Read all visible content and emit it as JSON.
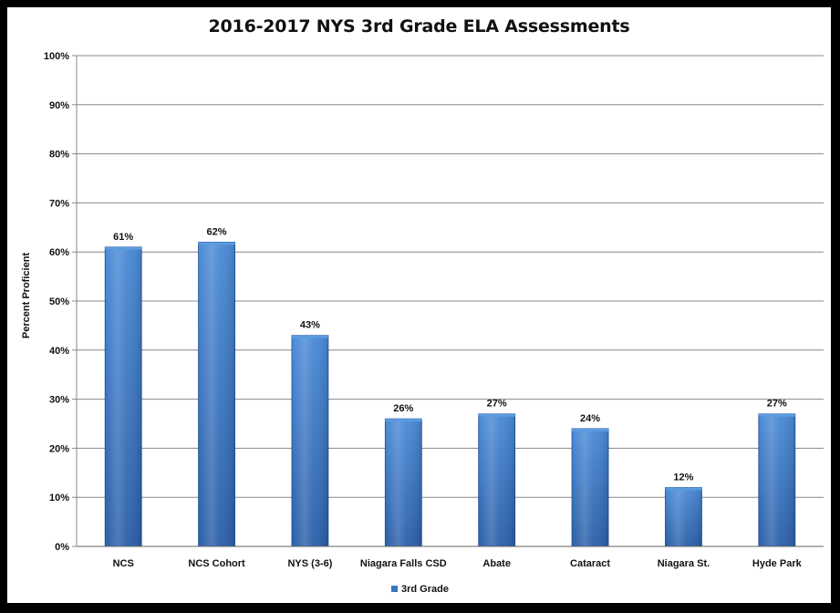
{
  "chart_data": {
    "type": "bar",
    "title": "2016-2017 NYS 3rd Grade ELA Assessments",
    "xlabel": "",
    "ylabel": "Percent Proficient",
    "ylim": [
      0,
      100
    ],
    "yticks": [
      "0%",
      "10%",
      "20%",
      "30%",
      "40%",
      "50%",
      "60%",
      "70%",
      "80%",
      "90%",
      "100%"
    ],
    "categories": [
      "NCS",
      "NCS Cohort",
      "NYS (3-6)",
      "Niagara Falls CSD",
      "Abate",
      "Cataract",
      "Niagara St.",
      "Hyde Park"
    ],
    "series": [
      {
        "name": "3rd Grade",
        "values": [
          61,
          62,
          43,
          26,
          27,
          24,
          12,
          27
        ],
        "labels": [
          "61%",
          "62%",
          "43%",
          "26%",
          "27%",
          "24%",
          "12%",
          "27%"
        ]
      }
    ],
    "grid": true,
    "legend_position": "bottom",
    "colors": {
      "bar": "#3a75c4",
      "bar_light": "#5b9be0",
      "bar_dark": "#1f4f94",
      "grid": "#888888",
      "frame": "#000000"
    }
  }
}
